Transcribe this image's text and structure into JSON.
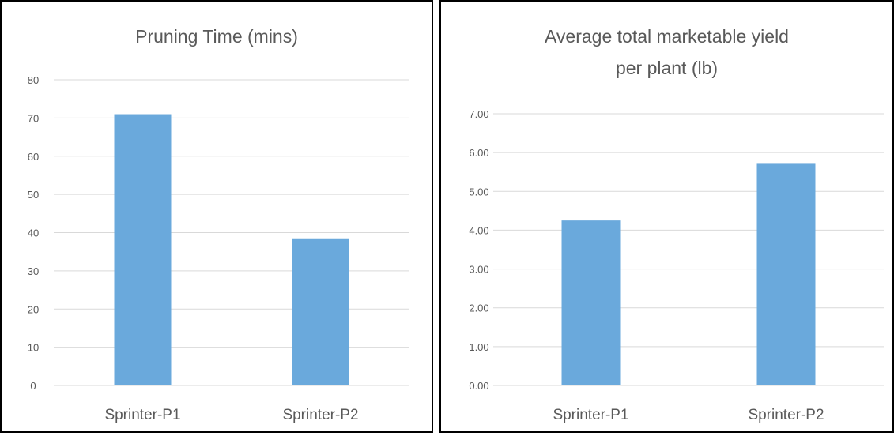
{
  "colors": {
    "bar": "#6aa9dc",
    "grid": "#d9d9d9",
    "text": "#595959"
  },
  "chart_data": [
    {
      "type": "bar",
      "title": "Pruning Time (mins)",
      "title_lines": [
        "Pruning Time (mins)"
      ],
      "categories": [
        "Sprinter-P1",
        "Sprinter-P2"
      ],
      "values": [
        71,
        38.5
      ],
      "xlabel": "",
      "ylabel": "",
      "ylim": [
        0,
        80
      ],
      "yticks": [
        0,
        10,
        20,
        30,
        40,
        50,
        60,
        70,
        80
      ],
      "ytick_labels": [
        "0",
        "10",
        "20",
        "30",
        "40",
        "50",
        "60",
        "70",
        "80"
      ],
      "grid": true,
      "legend": "none"
    },
    {
      "type": "bar",
      "title": "Average total marketable yield per plant (lb)",
      "title_lines": [
        "Average total marketable yield",
        "per plant (lb)"
      ],
      "categories": [
        "Sprinter-P1",
        "Sprinter-P2"
      ],
      "values": [
        4.25,
        5.73
      ],
      "xlabel": "",
      "ylabel": "",
      "ylim": [
        0,
        7
      ],
      "yticks": [
        0,
        1,
        2,
        3,
        4,
        5,
        6,
        7
      ],
      "ytick_labels": [
        "0.00",
        "1.00",
        "2.00",
        "3.00",
        "4.00",
        "5.00",
        "6.00",
        "7.00"
      ],
      "grid": true,
      "legend": "none"
    }
  ]
}
